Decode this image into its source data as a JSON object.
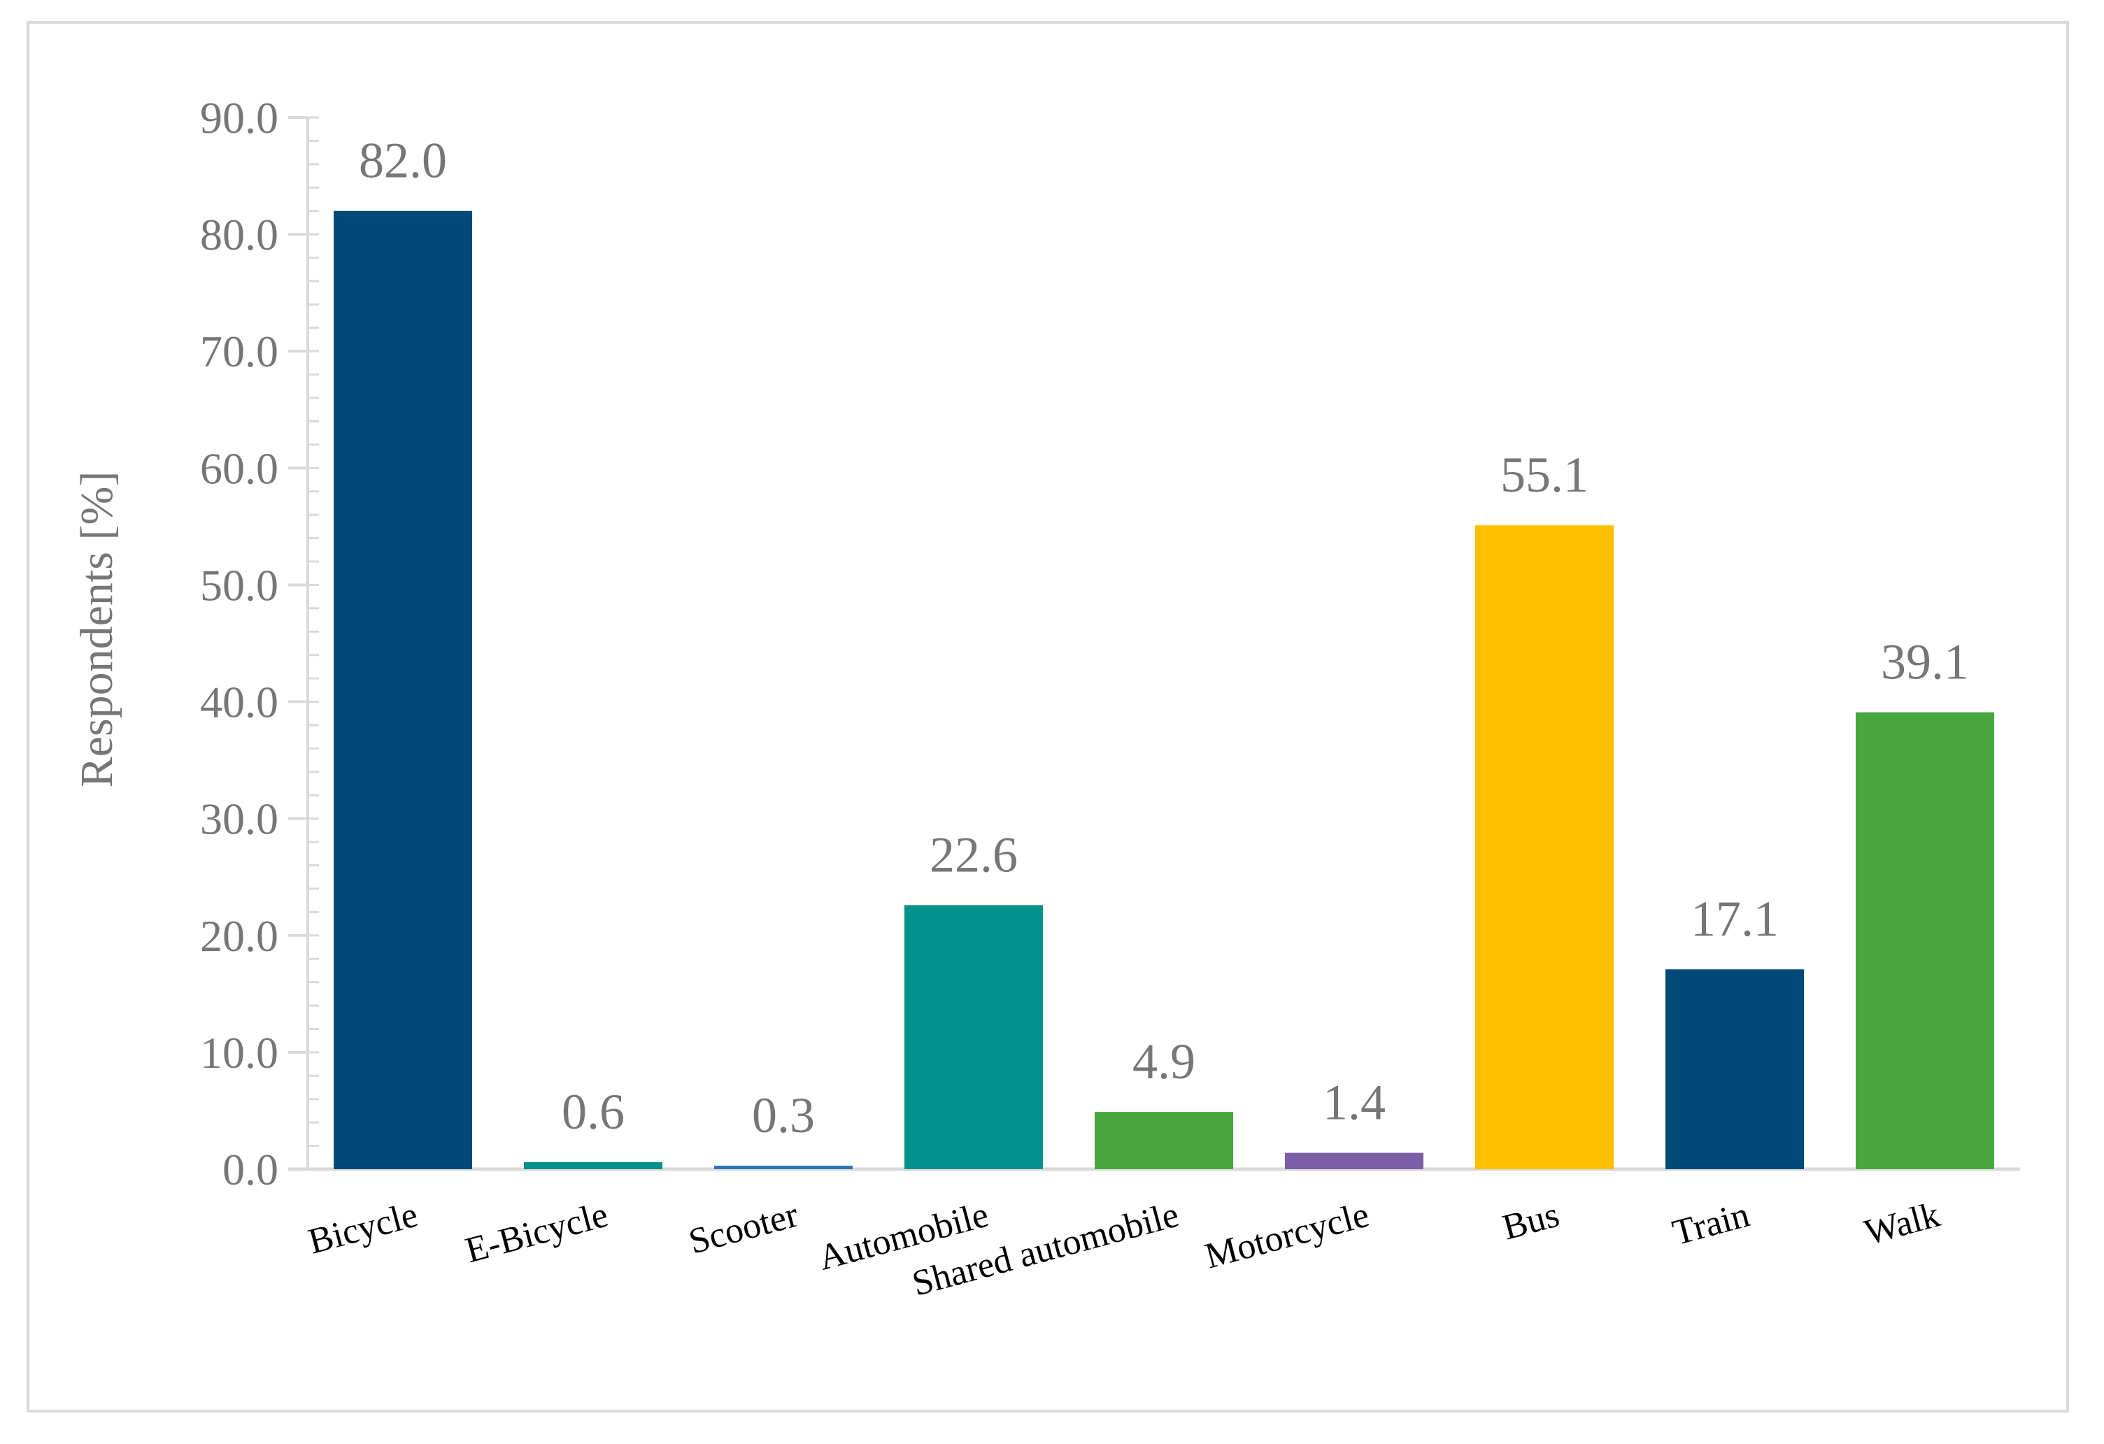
{
  "chart_data": {
    "type": "bar",
    "title": "",
    "xlabel": "",
    "ylabel": "Respondents [%]",
    "ylim": [
      0,
      90
    ],
    "ytick_step": 10,
    "ytick_labels": [
      "0.0",
      "10.0",
      "20.0",
      "30.0",
      "40.0",
      "50.0",
      "60.0",
      "70.0",
      "80.0",
      "90.0"
    ],
    "grid": false,
    "legend": "none",
    "categories": [
      "Bicycle",
      "E-Bicycle",
      "Scooter",
      "Automobile",
      "Shared automobile",
      "Motorcycle",
      "Bus",
      "Train",
      "Walk"
    ],
    "values": [
      82.0,
      0.6,
      0.3,
      22.6,
      4.9,
      1.4,
      55.1,
      17.1,
      39.1
    ],
    "value_labels": [
      "82.0",
      "0.6",
      "0.3",
      "22.6",
      "4.9",
      "1.4",
      "55.1",
      "17.1",
      "39.1"
    ],
    "colors": [
      "#004a77",
      "#00918c",
      "#2e75b6",
      "#00918c",
      "#46a83f",
      "#7c5ea6",
      "#ffc000",
      "#004a77",
      "#46a83f"
    ],
    "axis_color": "#d9d9d9",
    "text_color": "#767676"
  }
}
